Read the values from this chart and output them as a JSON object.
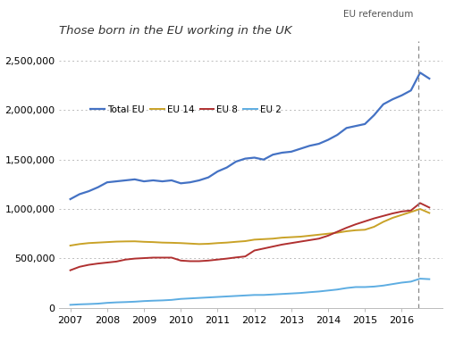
{
  "title": "Those born in the EU working in the UK",
  "annotation": "EU referendum",
  "referendum_x": 2016.45,
  "xlim": [
    2006.7,
    2017.1
  ],
  "ylim": [
    0,
    2700000
  ],
  "yticks": [
    0,
    500000,
    1000000,
    1500000,
    2000000,
    2500000
  ],
  "xticks": [
    2007,
    2008,
    2009,
    2010,
    2011,
    2012,
    2013,
    2014,
    2015,
    2016
  ],
  "series": {
    "Total EU": {
      "color": "#4472C4",
      "linewidth": 1.6,
      "data_x": [
        2007.0,
        2007.25,
        2007.5,
        2007.75,
        2008.0,
        2008.25,
        2008.5,
        2008.75,
        2009.0,
        2009.25,
        2009.5,
        2009.75,
        2010.0,
        2010.25,
        2010.5,
        2010.75,
        2011.0,
        2011.25,
        2011.5,
        2011.75,
        2012.0,
        2012.25,
        2012.5,
        2012.75,
        2013.0,
        2013.25,
        2013.5,
        2013.75,
        2014.0,
        2014.25,
        2014.5,
        2014.75,
        2015.0,
        2015.25,
        2015.5,
        2015.75,
        2016.0,
        2016.25,
        2016.5,
        2016.75
      ],
      "data_y": [
        1100000,
        1150000,
        1180000,
        1220000,
        1270000,
        1280000,
        1290000,
        1300000,
        1280000,
        1290000,
        1280000,
        1290000,
        1260000,
        1270000,
        1290000,
        1320000,
        1380000,
        1420000,
        1480000,
        1510000,
        1520000,
        1500000,
        1550000,
        1570000,
        1580000,
        1610000,
        1640000,
        1660000,
        1700000,
        1750000,
        1820000,
        1840000,
        1860000,
        1950000,
        2060000,
        2110000,
        2150000,
        2200000,
        2380000,
        2320000
      ]
    },
    "EU 14": {
      "color": "#C9A227",
      "linewidth": 1.4,
      "data_x": [
        2007.0,
        2007.25,
        2007.5,
        2007.75,
        2008.0,
        2008.25,
        2008.5,
        2008.75,
        2009.0,
        2009.25,
        2009.5,
        2009.75,
        2010.0,
        2010.25,
        2010.5,
        2010.75,
        2011.0,
        2011.25,
        2011.5,
        2011.75,
        2012.0,
        2012.25,
        2012.5,
        2012.75,
        2013.0,
        2013.25,
        2013.5,
        2013.75,
        2014.0,
        2014.25,
        2014.5,
        2014.75,
        2015.0,
        2015.25,
        2015.5,
        2015.75,
        2016.0,
        2016.25,
        2016.5,
        2016.75
      ],
      "data_y": [
        630000,
        645000,
        655000,
        660000,
        665000,
        670000,
        672000,
        673000,
        668000,
        665000,
        660000,
        658000,
        655000,
        650000,
        645000,
        648000,
        655000,
        660000,
        668000,
        675000,
        690000,
        695000,
        700000,
        710000,
        715000,
        720000,
        730000,
        740000,
        750000,
        760000,
        775000,
        785000,
        790000,
        820000,
        870000,
        910000,
        940000,
        970000,
        1000000,
        960000
      ]
    },
    "EU 8": {
      "color": "#B03030",
      "linewidth": 1.4,
      "data_x": [
        2007.0,
        2007.25,
        2007.5,
        2007.75,
        2008.0,
        2008.25,
        2008.5,
        2008.75,
        2009.0,
        2009.25,
        2009.5,
        2009.75,
        2010.0,
        2010.25,
        2010.5,
        2010.75,
        2011.0,
        2011.25,
        2011.5,
        2011.75,
        2012.0,
        2012.25,
        2012.5,
        2012.75,
        2013.0,
        2013.25,
        2013.5,
        2013.75,
        2014.0,
        2014.25,
        2014.5,
        2014.75,
        2015.0,
        2015.25,
        2015.5,
        2015.75,
        2016.0,
        2016.25,
        2016.5,
        2016.75
      ],
      "data_y": [
        380000,
        415000,
        435000,
        448000,
        458000,
        468000,
        488000,
        498000,
        503000,
        508000,
        508000,
        508000,
        478000,
        472000,
        472000,
        478000,
        488000,
        498000,
        510000,
        520000,
        580000,
        600000,
        620000,
        640000,
        655000,
        670000,
        685000,
        700000,
        730000,
        770000,
        810000,
        845000,
        875000,
        905000,
        930000,
        955000,
        975000,
        985000,
        1060000,
        1015000
      ]
    },
    "EU 2": {
      "color": "#5DADE2",
      "linewidth": 1.4,
      "data_x": [
        2007.0,
        2007.25,
        2007.5,
        2007.75,
        2008.0,
        2008.25,
        2008.5,
        2008.75,
        2009.0,
        2009.25,
        2009.5,
        2009.75,
        2010.0,
        2010.25,
        2010.5,
        2010.75,
        2011.0,
        2011.25,
        2011.5,
        2011.75,
        2012.0,
        2012.25,
        2012.5,
        2012.75,
        2013.0,
        2013.25,
        2013.5,
        2013.75,
        2014.0,
        2014.25,
        2014.5,
        2014.75,
        2015.0,
        2015.25,
        2015.5,
        2015.75,
        2016.0,
        2016.25,
        2016.5,
        2016.75
      ],
      "data_y": [
        30000,
        35000,
        38000,
        42000,
        50000,
        55000,
        58000,
        62000,
        68000,
        72000,
        75000,
        80000,
        90000,
        95000,
        100000,
        105000,
        110000,
        115000,
        120000,
        125000,
        130000,
        130000,
        135000,
        140000,
        145000,
        150000,
        158000,
        165000,
        175000,
        185000,
        200000,
        210000,
        210000,
        215000,
        225000,
        240000,
        255000,
        265000,
        295000,
        290000
      ]
    }
  },
  "legend_order": [
    "Total EU",
    "EU 14",
    "EU 8",
    "EU 2"
  ],
  "background_color": "#FFFFFF",
  "grid_color": "#BBBBBB",
  "title_fontsize": 9.5,
  "axis_fontsize": 8,
  "annotation_fontsize": 7.5
}
